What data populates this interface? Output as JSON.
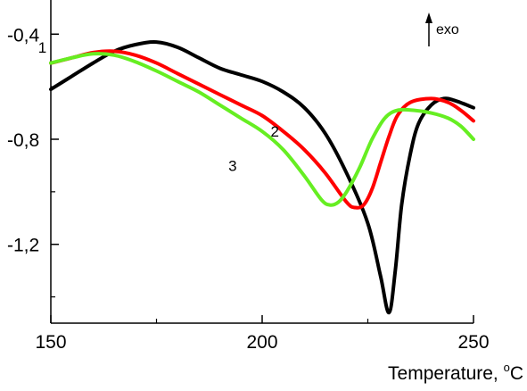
{
  "chart_data": {
    "type": "line",
    "xlabel_text": "Temperature, ",
    "xlabel_unit": "C",
    "xlabel_degree": "o",
    "exo_label": "exo",
    "xlim": [
      150,
      250
    ],
    "ylim": [
      -1.5,
      -0.27
    ],
    "xticks": [
      150,
      200,
      250
    ],
    "xtick_labels": [
      "150",
      "200",
      "250"
    ],
    "yticks": [
      -0.4,
      -0.8,
      -1.2
    ],
    "ytick_labels": [
      "-0,4",
      "-0,8",
      "-1,2"
    ],
    "grid": false,
    "series": [
      {
        "label": "1",
        "color": "#000000",
        "label_at": [
          148,
          -0.47
        ],
        "points": [
          [
            150,
            -0.61
          ],
          [
            155,
            -0.56
          ],
          [
            160,
            -0.51
          ],
          [
            165,
            -0.465
          ],
          [
            170,
            -0.44
          ],
          [
            175,
            -0.43
          ],
          [
            180,
            -0.45
          ],
          [
            185,
            -0.49
          ],
          [
            190,
            -0.53
          ],
          [
            195,
            -0.555
          ],
          [
            200,
            -0.58
          ],
          [
            205,
            -0.62
          ],
          [
            210,
            -0.68
          ],
          [
            215,
            -0.78
          ],
          [
            220,
            -0.93
          ],
          [
            225,
            -1.12
          ],
          [
            228,
            -1.32
          ],
          [
            230,
            -1.46
          ],
          [
            231.5,
            -1.3
          ],
          [
            233,
            -1.05
          ],
          [
            235,
            -0.86
          ],
          [
            237,
            -0.74
          ],
          [
            240,
            -0.67
          ],
          [
            243,
            -0.645
          ],
          [
            246,
            -0.655
          ],
          [
            250,
            -0.68
          ]
        ]
      },
      {
        "label": "2",
        "color": "#ff0000",
        "label_at": [
          203,
          -0.79
        ],
        "points": [
          [
            150,
            -0.51
          ],
          [
            155,
            -0.49
          ],
          [
            160,
            -0.47
          ],
          [
            165,
            -0.465
          ],
          [
            170,
            -0.48
          ],
          [
            175,
            -0.51
          ],
          [
            180,
            -0.55
          ],
          [
            185,
            -0.59
          ],
          [
            190,
            -0.63
          ],
          [
            195,
            -0.67
          ],
          [
            200,
            -0.71
          ],
          [
            205,
            -0.77
          ],
          [
            210,
            -0.84
          ],
          [
            215,
            -0.93
          ],
          [
            220,
            -1.04
          ],
          [
            222,
            -1.06
          ],
          [
            224,
            -1.05
          ],
          [
            226,
            -0.99
          ],
          [
            228,
            -0.89
          ],
          [
            230,
            -0.79
          ],
          [
            232,
            -0.71
          ],
          [
            235,
            -0.66
          ],
          [
            240,
            -0.645
          ],
          [
            244,
            -0.66
          ],
          [
            247,
            -0.69
          ],
          [
            250,
            -0.73
          ]
        ]
      },
      {
        "label": "3",
        "color": "#66ee22",
        "label_at": [
          193,
          -0.92
        ],
        "points": [
          [
            150,
            -0.51
          ],
          [
            155,
            -0.49
          ],
          [
            160,
            -0.475
          ],
          [
            165,
            -0.48
          ],
          [
            170,
            -0.505
          ],
          [
            175,
            -0.54
          ],
          [
            180,
            -0.58
          ],
          [
            185,
            -0.62
          ],
          [
            190,
            -0.67
          ],
          [
            195,
            -0.72
          ],
          [
            200,
            -0.77
          ],
          [
            205,
            -0.84
          ],
          [
            210,
            -0.94
          ],
          [
            214,
            -1.03
          ],
          [
            216,
            -1.05
          ],
          [
            218,
            -1.04
          ],
          [
            220,
            -1.0
          ],
          [
            223,
            -0.91
          ],
          [
            226,
            -0.8
          ],
          [
            229,
            -0.72
          ],
          [
            232,
            -0.69
          ],
          [
            236,
            -0.69
          ],
          [
            240,
            -0.7
          ],
          [
            244,
            -0.72
          ],
          [
            247,
            -0.75
          ],
          [
            250,
            -0.8
          ]
        ]
      }
    ]
  }
}
